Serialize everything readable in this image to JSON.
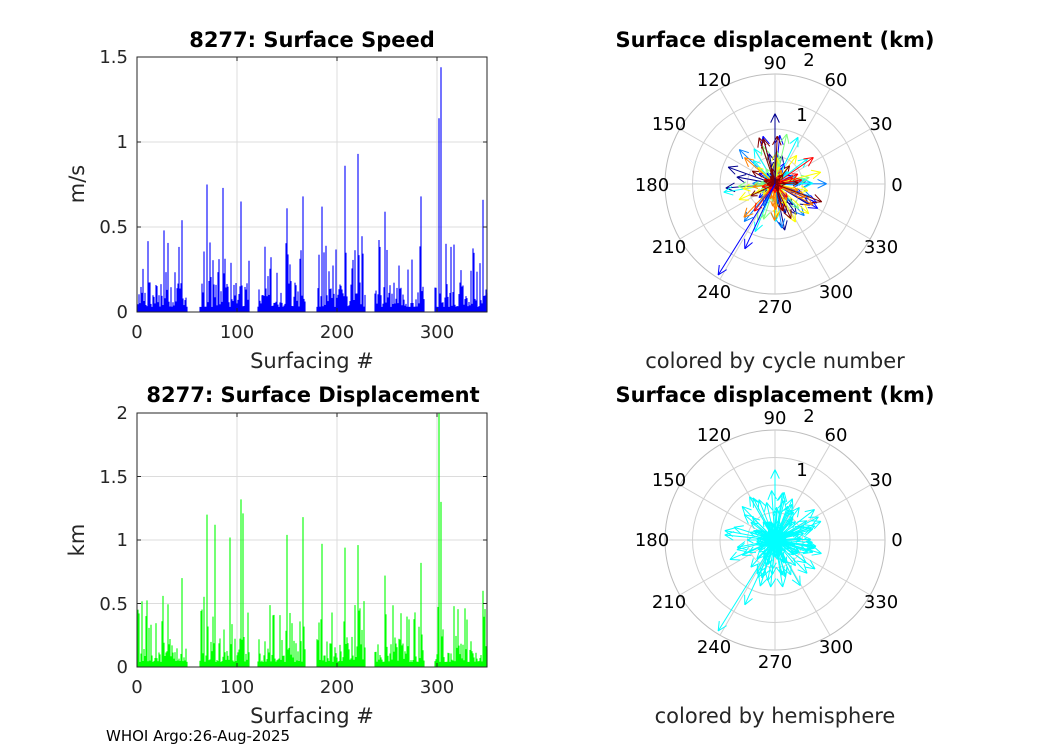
{
  "footer": "WHOI Argo:26-Aug-2025",
  "chart_data": [
    {
      "type": "bar",
      "title": "8277: Surface Speed",
      "xlabel": "Surfacing #",
      "ylabel": "m/s",
      "xlim": [
        0,
        350
      ],
      "ylim": [
        0,
        1.5
      ],
      "xticks": [
        "0",
        "100",
        "200",
        "300"
      ],
      "yticks": [
        "0",
        "0.5",
        "1",
        "1.5"
      ],
      "color": "#0000ff",
      "segments": [
        [
          1,
          50
        ],
        [
          63,
          112
        ],
        [
          121,
          168
        ],
        [
          180,
          228
        ],
        [
          238,
          287
        ],
        [
          298,
          350
        ]
      ],
      "peaks": [
        {
          "x": 27,
          "y": 0.48
        },
        {
          "x": 45,
          "y": 0.54
        },
        {
          "x": 70,
          "y": 0.75
        },
        {
          "x": 86,
          "y": 0.73
        },
        {
          "x": 104,
          "y": 0.65
        },
        {
          "x": 150,
          "y": 0.61
        },
        {
          "x": 166,
          "y": 0.68
        },
        {
          "x": 185,
          "y": 0.62
        },
        {
          "x": 208,
          "y": 0.86
        },
        {
          "x": 221,
          "y": 0.93
        },
        {
          "x": 248,
          "y": 0.59
        },
        {
          "x": 284,
          "y": 0.68
        },
        {
          "x": 302,
          "y": 1.14
        },
        {
          "x": 304,
          "y": 1.44
        },
        {
          "x": 346,
          "y": 0.66
        }
      ]
    },
    {
      "type": "polar-compass",
      "title": "Surface displacement (km)",
      "subtitle": "colored by cycle number",
      "rmax": 2,
      "radial_ticks": [
        "1",
        "2"
      ],
      "angle_ticks": [
        "0",
        "30",
        "60",
        "90",
        "120",
        "150",
        "180",
        "210",
        "240",
        "270",
        "300",
        "330"
      ],
      "colormap": [
        "#00008f",
        "#0000ff",
        "#0080ff",
        "#00ffff",
        "#80ff80",
        "#ffff00",
        "#ff8000",
        "#ff0000",
        "#800000"
      ]
    },
    {
      "type": "bar",
      "title": "8277: Surface Displacement",
      "xlabel": "Surfacing #",
      "ylabel": "km",
      "xlim": [
        0,
        350
      ],
      "ylim": [
        0,
        2
      ],
      "xticks": [
        "0",
        "100",
        "200",
        "300"
      ],
      "yticks": [
        "0",
        "0.5",
        "1",
        "1.5",
        "2"
      ],
      "color": "#00ff00",
      "segments": [
        [
          1,
          50
        ],
        [
          63,
          112
        ],
        [
          121,
          168
        ],
        [
          180,
          228
        ],
        [
          238,
          287
        ],
        [
          298,
          350
        ]
      ],
      "peaks": [
        {
          "x": 26,
          "y": 0.56
        },
        {
          "x": 45,
          "y": 0.7
        },
        {
          "x": 70,
          "y": 1.2
        },
        {
          "x": 78,
          "y": 1.12
        },
        {
          "x": 93,
          "y": 1.02
        },
        {
          "x": 104,
          "y": 1.32
        },
        {
          "x": 106,
          "y": 1.21
        },
        {
          "x": 150,
          "y": 1.04
        },
        {
          "x": 166,
          "y": 1.18
        },
        {
          "x": 185,
          "y": 0.97
        },
        {
          "x": 208,
          "y": 0.94
        },
        {
          "x": 221,
          "y": 0.96
        },
        {
          "x": 248,
          "y": 0.72
        },
        {
          "x": 284,
          "y": 0.82
        },
        {
          "x": 302,
          "y": 2.0
        },
        {
          "x": 304,
          "y": 1.3
        },
        {
          "x": 346,
          "y": 0.6
        }
      ]
    },
    {
      "type": "polar-compass",
      "title": "Surface displacement (km)",
      "subtitle": "colored by hemisphere",
      "rmax": 2,
      "radial_ticks": [
        "1",
        "2"
      ],
      "angle_ticks": [
        "0",
        "30",
        "60",
        "90",
        "120",
        "150",
        "180",
        "210",
        "240",
        "270",
        "300",
        "330"
      ],
      "colormap": [
        "#00ffff"
      ]
    }
  ]
}
